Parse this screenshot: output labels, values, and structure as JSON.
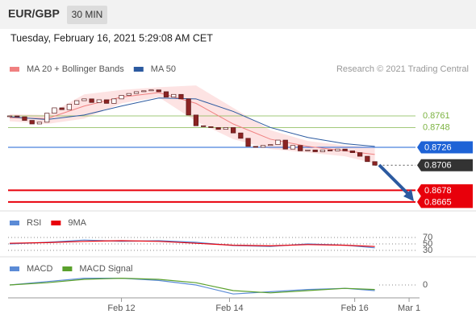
{
  "chart_data": {
    "type": "candlestick",
    "title": "EUR/GBP",
    "interval": "30 MIN",
    "subtitle": "Tuesday, February 16, 2021 5:29:08 AM CET",
    "credit": "Research © 2021 Trading Central",
    "xlim": [
      0,
      55
    ],
    "xticks": [
      {
        "value": 15,
        "label": "Feb 12"
      },
      {
        "value": 29.5,
        "label": "Feb 14"
      },
      {
        "value": 46.3,
        "label": "Feb 16"
      },
      {
        "value": 53.6,
        "label": "Mar 1"
      }
    ],
    "ylim": [
      0.8655,
      0.8805
    ],
    "up_color": "#ffffff",
    "down_color": "#8b2323",
    "close": [
      0.8761,
      0.876,
      0.8756,
      0.8752,
      0.8754,
      0.8764,
      0.877,
      0.8768,
      0.8774,
      0.8778,
      0.878,
      0.8776,
      0.8779,
      0.8775,
      0.878,
      0.8784,
      0.8786,
      0.8788,
      0.8789,
      0.879,
      0.8788,
      0.8782,
      0.8785,
      0.878,
      0.8762,
      0.875,
      0.8749,
      0.8748,
      0.8746,
      0.8748,
      0.8742,
      0.8736,
      0.8727,
      0.8726,
      0.8728,
      0.8729,
      0.8734,
      0.8724,
      0.8728,
      0.8722,
      0.8723,
      0.8721,
      0.8723,
      0.8722,
      0.8724,
      0.8722,
      0.872,
      0.8716,
      0.871,
      0.8706
    ],
    "overlays": [
      {
        "name": "MA 20 + Bollinger Bands",
        "color": "#f08080",
        "band_color": "#fde3e3",
        "x": [
          0,
          5,
          10,
          15,
          20,
          25,
          30,
          35,
          40,
          45,
          49
        ],
        "values": [
          0.8759,
          0.8758,
          0.8772,
          0.8782,
          0.8787,
          0.8775,
          0.8752,
          0.8735,
          0.8727,
          0.8722,
          0.8718
        ],
        "upper": [
          0.8763,
          0.8762,
          0.8785,
          0.879,
          0.8793,
          0.8795,
          0.877,
          0.8745,
          0.8733,
          0.8728,
          0.8726
        ],
        "lower": [
          0.8755,
          0.8752,
          0.8758,
          0.8775,
          0.8782,
          0.8755,
          0.8735,
          0.8724,
          0.872,
          0.8716,
          0.8708
        ]
      },
      {
        "name": "MA 50",
        "color": "#2c5aa0",
        "x": [
          0,
          5,
          10,
          15,
          20,
          25,
          30,
          35,
          40,
          45,
          49
        ],
        "values": [
          0.876,
          0.8757,
          0.8762,
          0.8772,
          0.8781,
          0.878,
          0.8766,
          0.8748,
          0.8737,
          0.873,
          0.8727
        ]
      }
    ],
    "levels": [
      {
        "value": 0.8761,
        "color": "#7cb342",
        "style": "thin"
      },
      {
        "value": 0.8748,
        "color": "#7cb342",
        "style": "thin"
      },
      {
        "value": 0.8726,
        "color": "#1e63d6",
        "style": "boxed"
      },
      {
        "value": 0.8706,
        "color": "#333333",
        "style": "dotted"
      },
      {
        "value": 0.8678,
        "color": "#e8000b",
        "style": "thick"
      },
      {
        "value": 0.8665,
        "color": "#e8000b",
        "style": "thick"
      }
    ],
    "rsi": {
      "ylim": [
        10,
        90
      ],
      "yticks": [
        70,
        50,
        30
      ],
      "series": [
        {
          "name": "RSI",
          "color": "#5b8bd6",
          "x": [
            0,
            5,
            10,
            15,
            20,
            25,
            30,
            35,
            40,
            45,
            49
          ],
          "values": [
            50,
            55,
            62,
            58,
            60,
            55,
            45,
            42,
            50,
            46,
            38
          ]
        },
        {
          "name": "9MA",
          "color": "#e8000b",
          "x": [
            0,
            5,
            10,
            15,
            20,
            25,
            30,
            35,
            40,
            45,
            49
          ],
          "values": [
            52,
            54,
            58,
            60,
            58,
            52,
            46,
            44,
            48,
            46,
            42
          ]
        }
      ]
    },
    "macd": {
      "ylim": [
        -0.001,
        0.001
      ],
      "yticks": [
        0
      ],
      "series": [
        {
          "name": "MACD",
          "color": "#5b8bd6",
          "x": [
            0,
            5,
            10,
            15,
            20,
            25,
            30,
            35,
            40,
            45,
            49
          ],
          "values": [
            0.0,
            0.0003,
            0.0006,
            0.0006,
            0.0004,
            0.0,
            -0.0008,
            -0.0006,
            -0.0004,
            -0.0003,
            -0.0005
          ]
        },
        {
          "name": "MACD Signal",
          "color": "#5aa02c",
          "x": [
            0,
            5,
            10,
            15,
            20,
            25,
            30,
            35,
            40,
            45,
            49
          ],
          "values": [
            0.0,
            0.0002,
            0.0005,
            0.0006,
            0.0005,
            0.0002,
            -0.0005,
            -0.0007,
            -0.0005,
            -0.0003,
            -0.0004
          ]
        }
      ]
    }
  }
}
